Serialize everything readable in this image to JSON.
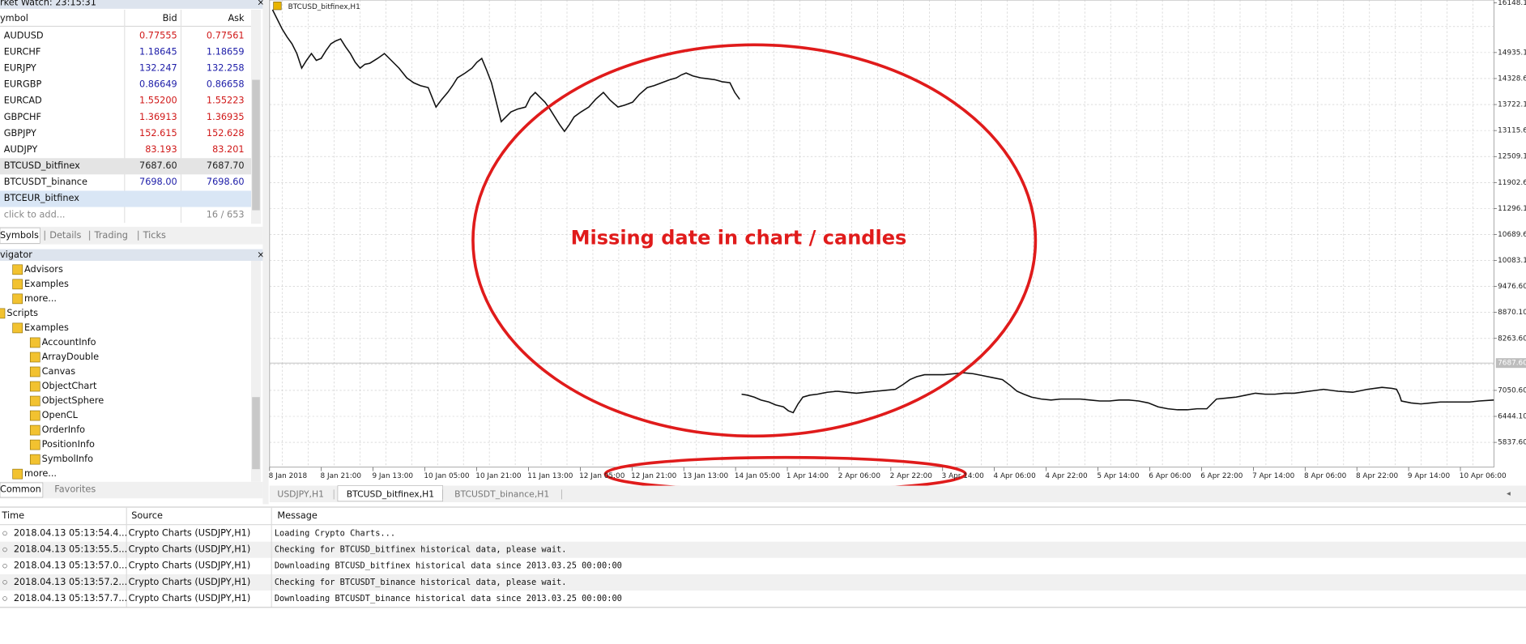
{
  "market_watch": {
    "title": "rket Watch: 23:15:31",
    "columns": [
      "ymbol",
      "Bid",
      "Ask"
    ],
    "rows": [
      {
        "symbol": "AUDUSD",
        "bid": "0.77555",
        "ask": "0.77561",
        "color": "#d01818"
      },
      {
        "symbol": "EURCHF",
        "bid": "1.18645",
        "ask": "1.18659",
        "color": "#1c1ca8"
      },
      {
        "symbol": "EURJPY",
        "bid": "132.247",
        "ask": "132.258",
        "color": "#1c1ca8"
      },
      {
        "symbol": "EURGBP",
        "bid": "0.86649",
        "ask": "0.86658",
        "color": "#1c1ca8"
      },
      {
        "symbol": "EURCAD",
        "bid": "1.55200",
        "ask": "1.55223",
        "color": "#d01818"
      },
      {
        "symbol": "GBPCHF",
        "bid": "1.36913",
        "ask": "1.36935",
        "color": "#d01818"
      },
      {
        "symbol": "GBPJPY",
        "bid": "152.615",
        "ask": "152.628",
        "color": "#d01818"
      },
      {
        "symbol": "AUDJPY",
        "bid": "83.193",
        "ask": "83.201",
        "color": "#d01818"
      },
      {
        "symbol": "BTCUSD_bitfinex",
        "bid": "7687.60",
        "ask": "7687.70",
        "color": "#222222"
      },
      {
        "symbol": "BTCUSDT_binance",
        "bid": "7698.00",
        "ask": "7698.60",
        "color": "#1c1ca8"
      },
      {
        "symbol": "BTCEUR_bitfinex"
      }
    ],
    "footer": [
      "click to add...",
      "16 / 653"
    ],
    "tabs": [
      "Symbols",
      "Details",
      "Trading",
      "Ticks"
    ]
  },
  "navigator": {
    "title": "vigator",
    "tree": [
      {
        "children": [
          {
            "label": "Advisors"
          },
          {
            "label": "Examples"
          },
          {
            "label": "more..."
          }
        ]
      },
      {
        "label": "Scripts",
        "children": [
          {
            "label": "Examples",
            "children": [
              {
                "label": "AccountInfo"
              },
              {
                "label": "ArrayDouble"
              },
              {
                "label": "Canvas"
              },
              {
                "label": "ObjectChart"
              },
              {
                "label": "ObjectSphere"
              },
              {
                "label": "OpenCL"
              },
              {
                "label": "OrderInfo"
              },
              {
                "label": "PositionInfo"
              },
              {
                "label": "SymbolInfo"
              }
            ]
          },
          {
            "label": "more..."
          }
        ]
      }
    ],
    "tabs": [
      "Common",
      "Favorites"
    ]
  },
  "chart": {
    "label": "BTCUSD_bitfinex,H1",
    "price_labels": [
      "16148.1",
      "14935.1",
      "14328.6",
      "13722.1",
      "13115.6",
      "12509.1",
      "11902.6",
      "11296.1",
      "10689.6",
      "10083.1",
      "9476.60",
      "8870.10",
      "8263.60",
      "7050.60",
      "6444.10",
      "5837.60"
    ],
    "current_price": "7687.60",
    "time_labels": [
      "8 Jan 2018",
      "8 Jan 21:00",
      "9 Jan 13:00",
      "10 Jan 05:00",
      "10 Jan 21:00",
      "11 Jan 13:00",
      "12 Jan 05:00",
      "12 Jan 21:00",
      "13 Jan 13:00",
      "14 Jan 05:00",
      "1 Apr 14:00",
      "2 Apr 06:00",
      "2 Apr 22:00",
      "3 Apr 14:00",
      "4 Apr 06:00",
      "4 Apr 22:00",
      "5 Apr 14:00",
      "6 Apr 06:00",
      "6 Apr 22:00",
      "7 Apr 14:00",
      "8 Apr 06:00",
      "8 Apr 22:00",
      "9 Apr 14:00",
      "10 Apr 06:00"
    ],
    "annotation": "Missing date in chart / candles"
  },
  "chart_tabs": [
    "USDJPY,H1",
    "BTCUSD_bitfinex,H1",
    "BTCUSDT_binance,H1"
  ],
  "journal": {
    "columns": [
      "Time",
      "Source",
      "Message"
    ],
    "rows": [
      [
        "2018.04.13 05:13:54.4...",
        "Crypto Charts (USDJPY,H1)",
        "Loading Crypto Charts..."
      ],
      [
        "2018.04.13 05:13:55.5...",
        "Crypto Charts (USDJPY,H1)",
        "Checking for BTCUSD_bitfinex historical data, please wait."
      ],
      [
        "2018.04.13 05:13:57.0...",
        "Crypto Charts (USDJPY,H1)",
        "Downloading BTCUSD_bitfinex historical data since 2013.03.25 00:00:00"
      ],
      [
        "2018.04.13 05:13:57.2...",
        "Crypto Charts (USDJPY,H1)",
        "Checking for BTCUSDT_binance historical data, please wait."
      ],
      [
        "2018.04.13 05:13:57.7...",
        "Crypto Charts (USDJPY,H1)",
        "Downloading BTCUSDT_binance historical data since 2013.03.25 00:00:00"
      ]
    ]
  }
}
